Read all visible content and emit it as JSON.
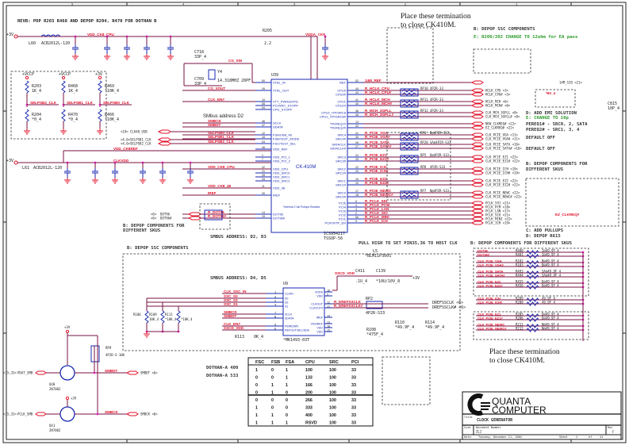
{
  "header": {
    "rev_note": "REVB: POP R203 R468 AND DEPOP R204, R470 FOR DOTHAN B",
    "place_note_top": [
      "Place these termination",
      "to close CK410M."
    ],
    "depop_ssc_note": "B: DEPOP SSC COMPONENTS",
    "change_note": "E: R200/202 CHANGE TO 12ohm for EA pass"
  },
  "power": {
    "rail_3v": "+3V",
    "vdd_ck8_cpu": "VDD_CK8_CPU",
    "vdda_ck8": "VDDA_CK8",
    "vdd_ck8_ref": "VDD_CK8REF",
    "clk_vdd": "CLKVDD",
    "vdd_ck8_48": "VDD_CK8_48",
    "inductor_top": "L60",
    "inductor_top_value": "ACB2012L-120",
    "inductor_left": "L61",
    "inductor_left_value": "ACB2012L-120",
    "r205": "R205",
    "r205_value": "2.2"
  },
  "strap_resistors": [
    {
      "rail": "+VCCP",
      "top": "R203",
      "top_val": "1K_4",
      "bot": "R204",
      "bot_val": "*0_4",
      "net": "SELPSB2_CLK"
    },
    {
      "rail": "+VCCP",
      "top": "R468",
      "top_val": "1K_4",
      "bot": "R470",
      "bot_val": "*0_4",
      "net": "SELPSB1_CLK"
    },
    {
      "rail": "+3V",
      "top": "R469",
      "top_val": "*10K_4",
      "bot": "R466",
      "bot_val": "*10K_4",
      "net": "SELPSB0_CLK"
    }
  ],
  "chip_main": {
    "ref": "U39",
    "part": "CK-410M",
    "part_number": "ICS954217",
    "package": "TSSOP-56",
    "internal_note": "*Internal 2 Val Pullups Resistor",
    "smbus_address": "SMbus address D2",
    "left_pins": [
      {
        "num": "50",
        "name": "XTAL_IN",
        "net": ""
      },
      {
        "num": "49",
        "name": "XTAL_OUT",
        "net": "CG_XOUT"
      },
      {
        "num": "10",
        "name": "VTT_PWRGD/PD",
        "net": "CLK_EN#"
      },
      {
        "num": "55",
        "name": "PCI/SRC_STOP#",
        "net": ""
      },
      {
        "num": "54",
        "name": "CPU_STOP#",
        "net": ""
      },
      {
        "num": "46",
        "name": "SCLK",
        "net": "SMBCK"
      },
      {
        "num": "47",
        "name": "SDATA",
        "net": "SMBDT"
      },
      {
        "num": "12",
        "name": "FSA/USB_48",
        "net": "SELPSB0_CLK"
      },
      {
        "num": "16",
        "name": "FSB/TEST_MODE",
        "net": "SELPSB1_CLK"
      },
      {
        "num": "53",
        "name": "FSC/TEST_SEL",
        "net": "SELPSB2_CLK"
      },
      {
        "num": "48",
        "name": "VDD_REF",
        "net": ""
      },
      {
        "num": "1",
        "name": "VDD_PCI_1",
        "net": ""
      },
      {
        "num": "7",
        "name": "VDD_PCI_2",
        "net": ""
      },
      {
        "num": "42",
        "name": "VDD_CPU",
        "net": "VDD_CK8_CPU"
      },
      {
        "num": "21",
        "name": "VDD_SRC0",
        "net": ""
      },
      {
        "num": "28",
        "name": "VDD_SRC1",
        "net": ""
      },
      {
        "num": "34",
        "name": "VDD_SRC2",
        "net": ""
      },
      {
        "num": "11",
        "name": "VDD_48",
        "net": "VDD_CK8_48"
      },
      {
        "num": "39",
        "name": "IREF",
        "net": "IREF"
      },
      {
        "num": "14",
        "name": "DOT96",
        "net": "R_DOT96"
      },
      {
        "num": "15",
        "name": "DOT96#",
        "net": "R_DOT96#"
      }
    ],
    "right_pins": [
      {
        "num": "52",
        "name": "REF",
        "net": "14M_REF",
        "out": "14M_SIO <21>"
      },
      {
        "num": "44",
        "name": "CPU0",
        "net": "R_HCLK_CPU",
        "out": "HCLK_CPU <3>"
      },
      {
        "num": "43",
        "name": "CPU0#",
        "net": "R_HCLK_CPU#",
        "out": "HCLK_CPU# <3>"
      },
      {
        "num": "41",
        "name": "CPU1",
        "net": "R_HCLK_MCH",
        "out": "HCLK_MCH <6>"
      },
      {
        "num": "40",
        "name": "CPU1#",
        "net": "R_HCLK_MCH#",
        "out": "HCLK_MCH# <6>"
      },
      {
        "num": "36",
        "name": "CPU2_ITP/SRC8",
        "net": "R_MCH_3GPLL",
        "out": "CLK_MCH_3GPLL <8>"
      },
      {
        "num": "35",
        "name": "CPU2_ITP/SRC8#",
        "net": "R_MCH_3GPLL#",
        "out": "CLK_MCH_3GPLL# <8>"
      },
      {
        "num": "13",
        "name": "*PEREQ1#",
        "net": "",
        "out": "NEW_CLKREQ# <22>"
      },
      {
        "num": "32",
        "name": "*PEREQ2#",
        "net": "",
        "out": "EZ_CLKREQ# <22>"
      },
      {
        "num": "31",
        "name": "SRC4",
        "net": "R_PCIE_VGA",
        "out": "CLK_PCIE_VGA <11>"
      },
      {
        "num": "30",
        "name": "SRC4#",
        "net": "R_PCIE_VGA#",
        "out": "CLK_PCIE_VGA# <11>"
      },
      {
        "num": "26",
        "name": "SATACLK",
        "net": "R_PCIE_SATA",
        "out": "CLK_PCIE_SATA <16>"
      },
      {
        "num": "27",
        "name": "SATACLK#",
        "net": "R_PCIE_SATA#",
        "out": "CLK_PCIE_SATA# <16>"
      },
      {
        "num": "24",
        "name": "SRC3",
        "net": "R_PCIE_EZ1",
        "out": "CLK_PCIE_EZ1 <22>"
      },
      {
        "num": "25",
        "name": "SRC3#",
        "net": "R_PCIE_EZ1#",
        "out": "CLK_PCIE_EZ1# <22>"
      },
      {
        "num": "22",
        "name": "SRC2",
        "net": "R_PCIE_ICH",
        "out": "CLK_PCIE_ICH <19>"
      },
      {
        "num": "23",
        "name": "SRC2#",
        "net": "R_PCIE_ICH#",
        "out": "CLK_PCIE_ICH# <19>"
      },
      {
        "num": "19",
        "name": "SRC1",
        "net": "R_PCIE_EZ2",
        "out": "CLK_PCIE_EZ2 <22>"
      },
      {
        "num": "20",
        "name": "SRC1#",
        "net": "R_PCIE_EZ2#",
        "out": "CLK_PCIE_EZ2# <22>"
      },
      {
        "num": "17",
        "name": "SRC0",
        "net": "R_PCIE_NEWC",
        "out": "CLK_PCIE_NEWC <22>"
      },
      {
        "num": "18",
        "name": "SRC0#",
        "net": "R_PCIE_NEWC#",
        "out": "CLK_PCIE_NEWC# <22>"
      },
      {
        "num": "5",
        "name": "PCI5",
        "net": "R_PCLK_591",
        "out": "PCLK_591 <21>"
      },
      {
        "num": "4",
        "name": "PCI4",
        "net": "R_PCLK_PCM",
        "out": "PCLK_PCM <18>"
      },
      {
        "num": "3",
        "name": "PCI3",
        "net": "R_PCLK_LAN",
        "out": "PCLK_LAN <17>"
      },
      {
        "num": "2",
        "name": "PCI2",
        "net": "R_PCLK_SIO",
        "out": "PCLK_SIO <21>"
      },
      {
        "num": "56",
        "name": "PCI1",
        "net": "R_PCLK_MINI",
        "out": "PCLK_MINI <22>"
      },
      {
        "num": "9",
        "name": "PCIF0/ITP_EN",
        "net": "R_PCLK_ICH",
        "out": "PCLK_ICH <19>"
      }
    ]
  },
  "resistor_packs": [
    {
      "ref": "RP10",
      "val": "4P2R-33"
    },
    {
      "ref": "RP11",
      "val": "4P2R-33"
    },
    {
      "ref": "RP12",
      "val": "4P2R-33"
    },
    {
      "ref": "RP6",
      "val": "B@4P2R-S33"
    },
    {
      "ref": "RP20",
      "val": "SA@4P2R-S33"
    },
    {
      "ref": "RP5",
      "val": "D@4P2R-S33"
    },
    {
      "ref": "RP8",
      "val": "4P2R-S33"
    },
    {
      "ref": "RP7",
      "val": "N@4P2R-S33"
    }
  ],
  "crystal": {
    "ref": "Y4",
    "value": "14.318MHZ 20PF",
    "c1": "C718",
    "c1_val": "33P_4",
    "c2": "C709",
    "c2_val": "33P_4",
    "net": "CG_XIN"
  },
  "side_notes": {
    "emi": "D: ADD EMI SOLUTION",
    "emi_change": "E: CHANGE TO 10p",
    "pereq1": "PEREQ1# - SRC0, 2, SATA",
    "pereq2": "PEREQ2# - SRC1, 3, 4",
    "default_off_1": "DEFAULT OFF",
    "default_off_2": "DEFAULT OFF",
    "depop_skus_right": [
      "B: DEPOP COMPONENTS FOR",
      "DIFFERENT SKUS"
    ],
    "depop_skus_left": [
      "B: DEPOP COMPONENTS FOR",
      "DIFFERENT SKUS"
    ],
    "add_pullups": "C: ADD PULLUPS",
    "depop_r615": "D: DEPOP R615",
    "smbus_d2_d3": "SMBUS ADDRESS: D2, D3",
    "pull_high": "PULL HIGH TO SET PIN35,36 TO HOST CLK",
    "depop_skus_mid": "B: DEPOP COMPONENTS FOR DIFFERENT SKUS",
    "depop_ssc_mid": "B: DEPOP SSC COMPONENTS",
    "smbus_d4_d5": "SMBUS ADDRESS: D4, D5",
    "place_bottom": [
      "Place these termination",
      "to close CK410M."
    ],
    "ez_clkreq": "EZ_CLKREQ#",
    "c815": "C815",
    "c815_val": "10P_4",
    "r_60_4": "*60_4"
  },
  "left_connectors": [
    {
      "tag": "<19>",
      "net": "CLK48_USB"
    },
    {
      "tag": "<4,6>",
      "net": "SELPSB1_CLK"
    },
    {
      "tag": "<4,6>",
      "net": "SELPSB2_CLK"
    },
    {
      "tag": "<6>",
      "net": "DOT96"
    },
    {
      "tag": "<6>",
      "net": "DOT96#"
    }
  ],
  "termination_resistors": [
    {
      "net": "DOT96",
      "ref": "R480",
      "val": "I@49.9F_4"
    },
    {
      "net": "DOT96#",
      "ref": "R481",
      "val": "I@49.9F_4"
    },
    {
      "net": "CLK_PCIE_VGA",
      "ref": "R182",
      "val": "B@49.9F_4"
    },
    {
      "net": "CLK_PCIE_VGA#",
      "ref": "R183",
      "val": "B@49.9F_4"
    },
    {
      "net": "CLK_PCIE_SATA",
      "ref": "R493",
      "val": "SA@49.9F_4"
    },
    {
      "net": "CLK_PCIE_SATA#",
      "ref": "R494",
      "val": "SA@49.9F_4"
    },
    {
      "net": "CLK_PCIE_EZ2",
      "ref": "R455",
      "val": "D@49.9F_4"
    },
    {
      "net": "CLK_PCIE_EZ2#",
      "ref": "R456",
      "val": "D@49.9F_4"
    },
    {
      "net": "CLK_PCIE_ICH",
      "ref": "R209",
      "val": "49.9F_4"
    },
    {
      "net": "CLK_PCIE_ICH#",
      "ref": "R208",
      "val": "49.9F_4"
    },
    {
      "net": "CLK_PCIE_EZ1",
      "ref": "R205",
      "val": "D@49.9F_4"
    },
    {
      "net": "CLK_PCIE_EZ1#",
      "ref": "R206",
      "val": "D@49.9F_4"
    },
    {
      "net": "CLK_PCIE_NEWC",
      "ref": "R211",
      "val": "N@49.9F_4"
    },
    {
      "net": "CLK_PCIE_NEWC#",
      "ref": "R212",
      "val": "N@49.9F_4"
    }
  ],
  "ssc_chip": {
    "ref": "U9",
    "part": "*MK1493-03T",
    "left_pins": [
      {
        "num": "1",
        "name": "CLKIN",
        "net": "CLK_SSC_IN"
      },
      {
        "num": "3",
        "name": "S0",
        "net": "SSC_S0"
      },
      {
        "num": "2",
        "name": "S2",
        "net": "SSC_S2"
      },
      {
        "num": "4",
        "name": "S1",
        "net": "SSC_S1"
      },
      {
        "num": "7",
        "name": "SCLK",
        "net": "SMBCK"
      },
      {
        "num": "8",
        "name": "SDATA",
        "net": "SMBDT"
      },
      {
        "num": "9",
        "name": "PWRDWN",
        "net": "CLK_EN#"
      },
      {
        "num": "6",
        "name": "REFOUT/SEL/SDA",
        "net": "SSCD_VDD"
      }
    ],
    "right_pins": [
      {
        "num": "16",
        "name": "VDDA"
      },
      {
        "num": "5",
        "name": "VDD"
      },
      {
        "num": "12",
        "name": "CLKOUT"
      },
      {
        "num": "11",
        "name": "CLKOUT#"
      },
      {
        "num": "14",
        "name": "IREF"
      },
      {
        "num": "13",
        "name": "VSSIREF"
      },
      {
        "num": "10",
        "name": "VDD"
      },
      {
        "num": "15",
        "name": "VDD"
      }
    ],
    "out_nets": [
      "R_DREFSSCLK",
      "R_DREFSSCLK#"
    ],
    "out_ports": [
      "DREFSSCLK <6>",
      "DREFSSCLK# <6>"
    ],
    "pullups": [
      {
        "ref": "R106",
        "val": "10K_4"
      },
      {
        "ref": "R109",
        "val": "*10K_4"
      },
      {
        "ref": "R111",
        "val": "*10K_4"
      }
    ],
    "r113": "R113",
    "r113_val": "0K_4",
    "rp": "RP2",
    "rp_val": "4P2R-S33",
    "inductor": "L5",
    "inductor_val": "*BLM11P300S",
    "rail": "+3V",
    "vdd_net": "SSCD_VDD",
    "caps": [
      {
        "ref": "C411",
        "val": ".1U_4"
      },
      {
        "ref": "C139",
        "val": "*10U/10V_8"
      }
    ],
    "term": [
      {
        "ref": "R110",
        "val": "*49.9F_4"
      },
      {
        "ref": "R114",
        "val": "*49.9F_4"
      },
      {
        "ref": "R108",
        "val": "*475F_4"
      }
    ]
  },
  "level_shift": {
    "rail": "+3V",
    "rp": "RP9",
    "rp_val": "4P2R-S-10K",
    "q1": "Q40",
    "q1_part": "2N7002",
    "q2": "Q41",
    "q2_part": "2N7002",
    "in1": "PDAT_SMB",
    "in1_tag": "<15,33>",
    "in2": "PCLK_SMB",
    "in2_tag": "<15,33>",
    "net1": "SMBDT",
    "net2": "SMBCK",
    "out1": "SMBDT <6>",
    "out2": "SMBCK <6>"
  },
  "dothan_labels": [
    "DOTHAN-A 400",
    "DOTHAN-A 533"
  ],
  "freq_table": {
    "headers": [
      "FSC",
      "FSB",
      "FSA",
      "CPU",
      "SRC",
      "PCI"
    ],
    "rows": [
      [
        "1",
        "0",
        "1",
        "100",
        "100",
        "33"
      ],
      [
        "0",
        "0",
        "1",
        "133",
        "100",
        "33"
      ],
      [
        "0",
        "1",
        "1",
        "166",
        "100",
        "33"
      ],
      [
        "0",
        "1",
        "0",
        "200",
        "100",
        "33"
      ],
      [
        "0",
        "0",
        "0",
        "266",
        "100",
        "33"
      ],
      [
        "1",
        "0",
        "0",
        "333",
        "100",
        "33"
      ],
      [
        "1",
        "1",
        "0",
        "400",
        "100",
        "33"
      ],
      [
        "1",
        "1",
        "1",
        "RSVD",
        "100",
        "33"
      ]
    ]
  },
  "title_block": {
    "company_line1": "QUANTA",
    "company_line2": "COMPUTER",
    "title_label": "Title",
    "title": "CLOCK GENERATOR",
    "size_label": "Size",
    "doc_label": "Document Number",
    "doc_number": "ZL2",
    "rev_label": "Rev",
    "rev": "F",
    "date_label": "Date:",
    "date": "Tuesday, December 21, 2004",
    "sheet_label": "Sheet",
    "sheet": "2",
    "of_label": "of",
    "sheet_total": "41"
  },
  "border": {
    "col_marks": [
      "1",
      "2",
      "3",
      "4",
      "5"
    ],
    "row_marks": [
      "A",
      "B",
      "C",
      "D"
    ]
  },
  "colors": {
    "wire": "#7a1040",
    "net": "#e0102a",
    "component": "#1a2ab0",
    "junction": "#e020c0",
    "note_green": "#2a9a2a"
  }
}
